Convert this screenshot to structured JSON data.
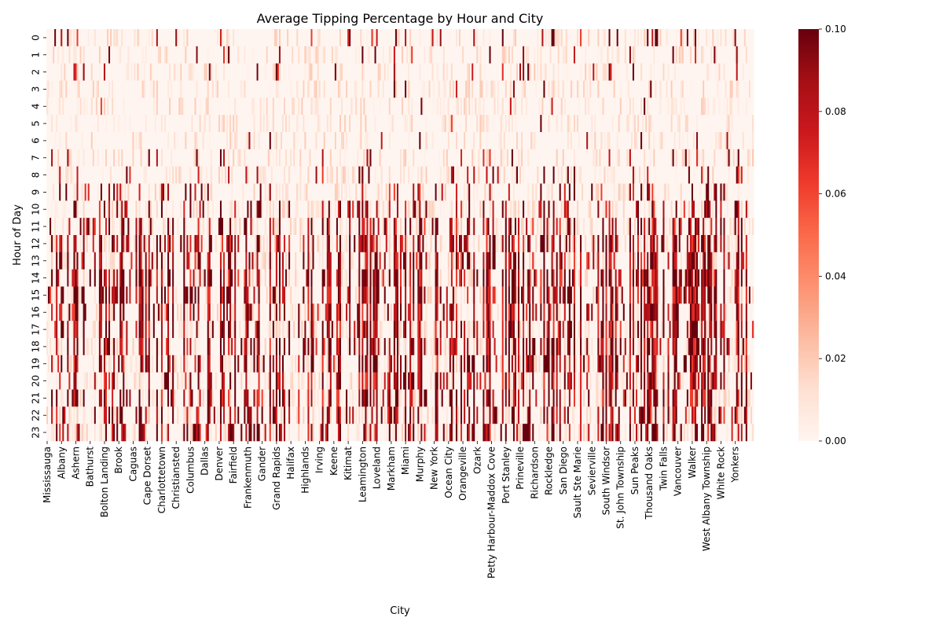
{
  "chart_data": {
    "type": "heatmap",
    "title": "Average Tipping Percentage by Hour and City",
    "xlabel": "City",
    "ylabel": "Hour of Day",
    "y_categories": [
      "0",
      "1",
      "2",
      "3",
      "4",
      "5",
      "6",
      "7",
      "8",
      "9",
      "10",
      "11",
      "12",
      "13",
      "14",
      "15",
      "16",
      "17",
      "18",
      "19",
      "20",
      "21",
      "22",
      "23"
    ],
    "x_tick_labels": [
      "Mississauga",
      "Albany",
      "Ashern",
      "Bathurst",
      "Bolton Landing",
      "Brook",
      "Caguas",
      "Cape Dorset",
      "Charlottetown",
      "Christiansted",
      "Columbus",
      "Dallas",
      "Denver",
      "Fairfield",
      "Frankenmuth",
      "Gander",
      "Grand Rapids",
      "Halifax",
      "Highlands",
      "Irving",
      "Keene",
      "Kitimat",
      "Leamington",
      "Loveland",
      "Markham",
      "Miami",
      "Murphy",
      "New York",
      "Ocean City",
      "Orangeville",
      "Ozark",
      "Petty Harbour-Maddox Cove",
      "Port Stanley",
      "Prineville",
      "Richardson",
      "Rockledge",
      "San Diego",
      "Sault Ste Marie",
      "Sevierville",
      "South Windsor",
      "St. John Township",
      "Sun  Peaks",
      "Thousand Oaks",
      "Twin Falls",
      "Vancouver",
      "Walker",
      "West Albany Township",
      "White Rock",
      "Yonkers"
    ],
    "column_count": 444,
    "x_tick_every": 9,
    "value_range": [
      0.0,
      0.1
    ],
    "colorbar_ticks": [
      "0.00",
      "0.02",
      "0.04",
      "0.06",
      "0.08",
      "0.10"
    ],
    "colormap": "Reds",
    "colormap_stops": [
      "#fff5f0",
      "#fee0d2",
      "#fcbba1",
      "#fc9272",
      "#fb6a4a",
      "#ef3b2c",
      "#cb181d",
      "#a50f15",
      "#67000d"
    ],
    "daytime_pattern": "dense dark-red columns concentrated in hours 10-23; early morning hours 1-7 mostly near 0.00"
  }
}
